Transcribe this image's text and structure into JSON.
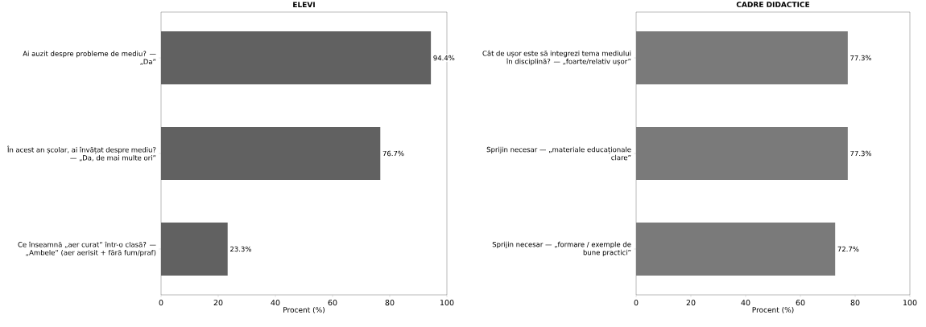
{
  "chart_data": [
    {
      "type": "bar",
      "orientation": "horizontal",
      "title": "ELEVI",
      "xlabel": "Procent (%)",
      "categories": [
        "Ai auzit despre probleme de mediu? — „Da”",
        "În acest an școlar, ai învățat despre mediu? — „Da, de mai multe ori”",
        "Ce înseamnă „aer curat” într-o clasă? — „Ambele” (aer aerisit + fără fum/praf)"
      ],
      "values": [
        94.4,
        76.7,
        23.3
      ],
      "value_labels": [
        "94.4%",
        "76.7%",
        "23.3%"
      ],
      "color": "#616161",
      "xlim": [
        0,
        100
      ],
      "xticks": [
        0,
        20,
        40,
        60,
        80,
        100
      ]
    },
    {
      "type": "bar",
      "orientation": "horizontal",
      "title": "CADRE DIDACTICE",
      "xlabel": "Procent (%)",
      "categories": [
        "Cât de ușor este să integrezi tema mediului în disciplină? — „foarte/relativ ușor”",
        "Sprijin necesar — „materiale educaționale clare”",
        "Sprijin necesar — „formare / exemple de bune practici”"
      ],
      "values": [
        77.3,
        77.3,
        72.7
      ],
      "value_labels": [
        "77.3%",
        "77.3%",
        "72.7%"
      ],
      "color": "#7a7a7a",
      "xlim": [
        0,
        100
      ],
      "xticks": [
        0,
        20,
        40,
        60,
        80,
        100
      ]
    }
  ]
}
